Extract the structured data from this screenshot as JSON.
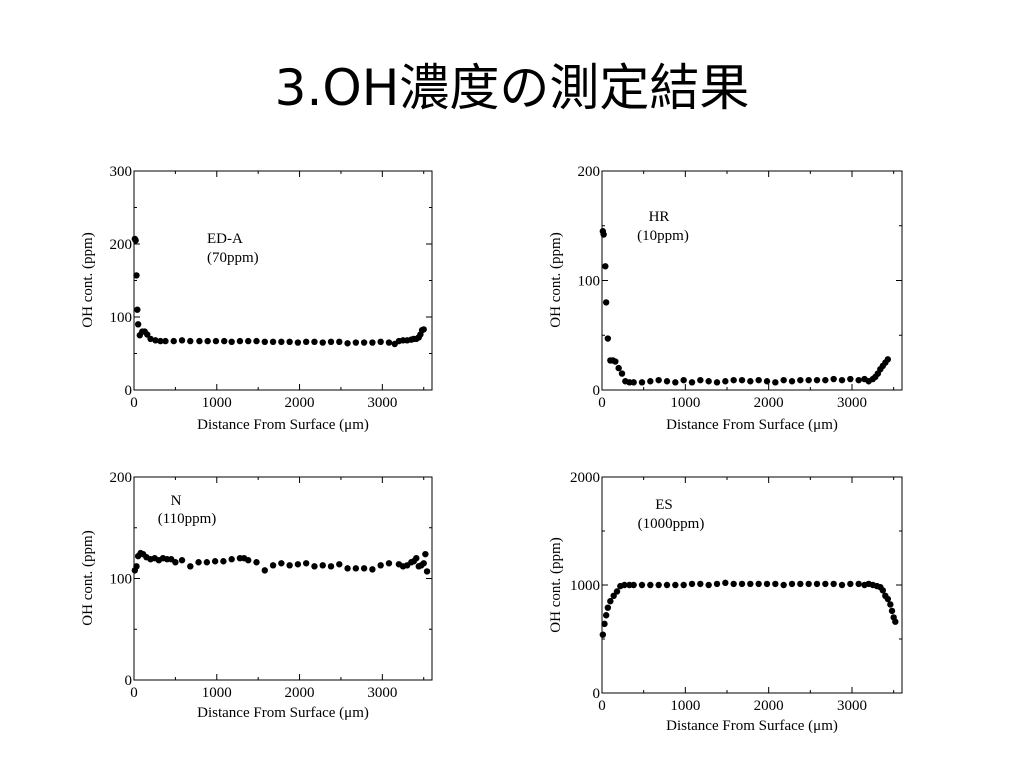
{
  "slide": {
    "title": "3.OH濃度の測定結果"
  },
  "chart_data": [
    {
      "type": "scatter",
      "title": "",
      "annotation": [
        "ED-A",
        "(70ppm)"
      ],
      "xlabel": "Distance From Surface (μm)",
      "ylabel": "OH cont. (ppm)",
      "xlim": [
        0,
        3600
      ],
      "ylim": [
        0,
        300
      ],
      "xticks": [
        0,
        1000,
        2000,
        3000
      ],
      "yticks": [
        0,
        100,
        200,
        300
      ],
      "xtick_labels": [
        "0",
        "1000",
        "2000",
        "3000"
      ],
      "ytick_labels": [
        "0",
        "100",
        "200",
        "300"
      ],
      "grid": false,
      "series": [
        {
          "x": [
            10,
            20,
            30,
            40,
            50,
            70,
            100,
            130,
            160,
            200,
            260,
            320,
            380,
            480,
            580,
            680,
            790,
            890,
            990,
            1090,
            1180,
            1280,
            1380,
            1480,
            1580,
            1680,
            1780,
            1880,
            1980,
            2080,
            2180,
            2280,
            2380,
            2480,
            2580,
            2680,
            2780,
            2880,
            2980,
            3080,
            3150,
            3200,
            3250,
            3300,
            3350,
            3380,
            3410,
            3440,
            3460,
            3480,
            3500
          ],
          "y": [
            207,
            205,
            157,
            110,
            90,
            75,
            80,
            80,
            76,
            70,
            68,
            67,
            67,
            67,
            68,
            67,
            67,
            67,
            67,
            67,
            66,
            67,
            67,
            67,
            66,
            66,
            66,
            66,
            65,
            66,
            66,
            65,
            66,
            66,
            64,
            65,
            65,
            65,
            66,
            65,
            63,
            67,
            68,
            68,
            69,
            70,
            70,
            72,
            76,
            82,
            83
          ]
        }
      ]
    },
    {
      "type": "scatter",
      "title": "",
      "annotation": [
        "HR",
        "(10ppm)"
      ],
      "xlabel": "Distance From Surface (μm)",
      "ylabel": "OH cont. (ppm)",
      "xlim": [
        0,
        3600
      ],
      "ylim": [
        0,
        200
      ],
      "xticks": [
        0,
        1000,
        2000,
        3000
      ],
      "yticks": [
        0,
        100,
        200
      ],
      "xtick_labels": [
        "0",
        "1000",
        "2000",
        "3000"
      ],
      "ytick_labels": [
        "0",
        "100",
        "200"
      ],
      "grid": false,
      "series": [
        {
          "x": [
            10,
            20,
            40,
            50,
            70,
            100,
            130,
            160,
            200,
            240,
            280,
            330,
            380,
            480,
            580,
            680,
            780,
            880,
            980,
            1080,
            1180,
            1280,
            1380,
            1480,
            1580,
            1680,
            1780,
            1880,
            1980,
            2080,
            2180,
            2280,
            2380,
            2480,
            2580,
            2680,
            2780,
            2880,
            2980,
            3080,
            3150,
            3200,
            3250,
            3280,
            3310,
            3340,
            3370,
            3400,
            3430
          ],
          "y": [
            145,
            142,
            113,
            80,
            47,
            27,
            27,
            26,
            20,
            15,
            8,
            7,
            7,
            7,
            8,
            9,
            8,
            7,
            9,
            7,
            9,
            8,
            7,
            8,
            9,
            9,
            8,
            9,
            8,
            7,
            9,
            8,
            9,
            9,
            9,
            9,
            10,
            9,
            10,
            9,
            10,
            8,
            10,
            12,
            15,
            19,
            22,
            25,
            28
          ]
        }
      ]
    },
    {
      "type": "scatter",
      "title": "",
      "annotation": [
        "N",
        "(110ppm)"
      ],
      "xlabel": "Distance From Surface (μm)",
      "ylabel": "OH cont. (ppm)",
      "xlim": [
        0,
        3600
      ],
      "ylim": [
        0,
        200
      ],
      "xticks": [
        0,
        1000,
        2000,
        3000
      ],
      "yticks": [
        0,
        100,
        200
      ],
      "xtick_labels": [
        "0",
        "1000",
        "2000",
        "3000"
      ],
      "ytick_labels": [
        "0",
        "100",
        "200"
      ],
      "grid": false,
      "series": [
        {
          "x": [
            10,
            30,
            50,
            80,
            110,
            150,
            200,
            250,
            300,
            350,
            400,
            450,
            500,
            580,
            680,
            780,
            880,
            980,
            1080,
            1180,
            1280,
            1330,
            1380,
            1480,
            1580,
            1680,
            1780,
            1880,
            1980,
            2080,
            2180,
            2280,
            2380,
            2480,
            2580,
            2680,
            2780,
            2880,
            2980,
            3080,
            3200,
            3250,
            3300,
            3350,
            3380,
            3410,
            3440,
            3470,
            3500,
            3520,
            3540
          ],
          "y": [
            108,
            112,
            122,
            125,
            124,
            121,
            119,
            120,
            118,
            120,
            119,
            119,
            116,
            118,
            112,
            116,
            116,
            117,
            117,
            119,
            120,
            120,
            118,
            116,
            108,
            113,
            115,
            113,
            114,
            115,
            112,
            113,
            112,
            114,
            110,
            110,
            110,
            109,
            113,
            115,
            114,
            112,
            113,
            116,
            117,
            120,
            112,
            113,
            115,
            124,
            107
          ]
        }
      ]
    },
    {
      "type": "scatter",
      "title": "",
      "annotation": [
        "ES",
        "(1000ppm)"
      ],
      "xlabel": "Distance From Surface (μm)",
      "ylabel": "OH cont. (ppm)",
      "xlim": [
        0,
        3600
      ],
      "ylim": [
        0,
        2000
      ],
      "xticks": [
        0,
        1000,
        2000,
        3000
      ],
      "yticks": [
        0,
        1000,
        2000
      ],
      "xtick_labels": [
        "0",
        "1000",
        "2000",
        "3000"
      ],
      "ytick_labels": [
        "0",
        "1000",
        "2000"
      ],
      "grid": false,
      "series": [
        {
          "x": [
            10,
            30,
            50,
            70,
            100,
            140,
            180,
            220,
            270,
            330,
            380,
            480,
            580,
            680,
            780,
            880,
            980,
            1080,
            1180,
            1280,
            1380,
            1480,
            1580,
            1680,
            1780,
            1880,
            1980,
            2080,
            2180,
            2280,
            2380,
            2480,
            2580,
            2680,
            2780,
            2880,
            2980,
            3080,
            3150,
            3200,
            3250,
            3300,
            3340,
            3370,
            3400,
            3430,
            3460,
            3480,
            3500,
            3520
          ],
          "y": [
            540,
            640,
            720,
            790,
            850,
            900,
            940,
            990,
            1000,
            1000,
            1000,
            1000,
            1000,
            1000,
            1000,
            1000,
            1000,
            1010,
            1010,
            1000,
            1010,
            1020,
            1010,
            1010,
            1010,
            1010,
            1010,
            1010,
            1000,
            1010,
            1010,
            1010,
            1010,
            1010,
            1010,
            1000,
            1010,
            1010,
            1000,
            1010,
            1000,
            990,
            980,
            950,
            900,
            870,
            820,
            760,
            700,
            660
          ]
        }
      ]
    }
  ]
}
